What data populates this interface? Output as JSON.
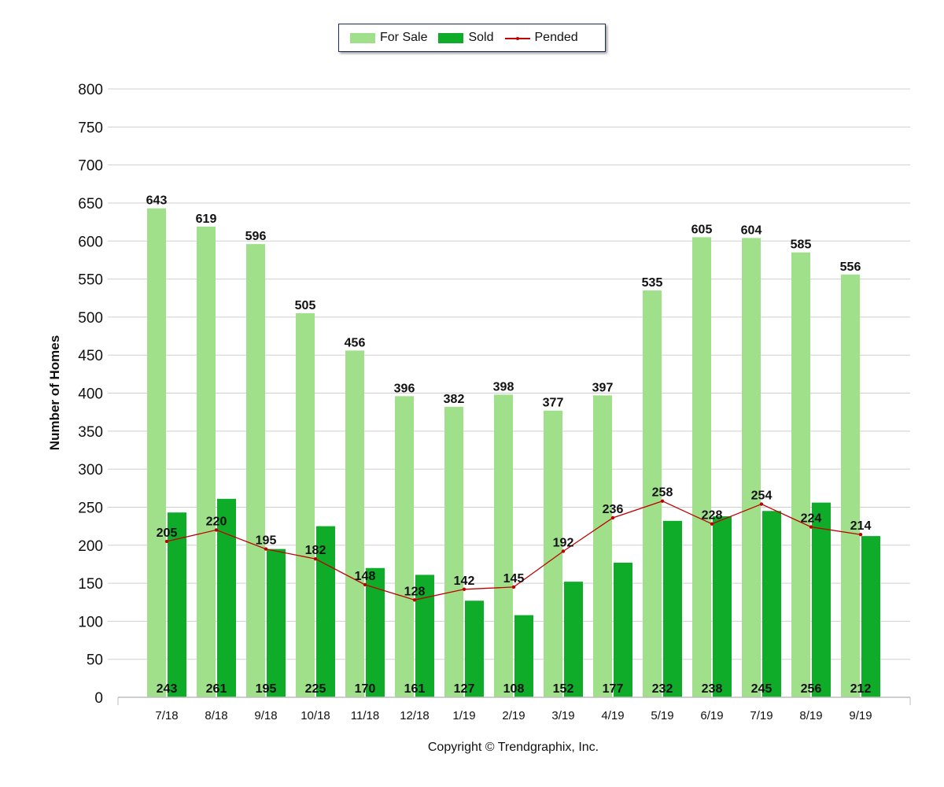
{
  "legend": {
    "for_sale": "For Sale",
    "sold": "Sold",
    "pended": "Pended"
  },
  "copyright": "Copyright © Trendgraphix, Inc.",
  "chart_data": {
    "type": "bar",
    "categories": [
      "7/18",
      "8/18",
      "9/18",
      "10/18",
      "11/18",
      "12/18",
      "1/19",
      "2/19",
      "3/19",
      "4/19",
      "5/19",
      "6/19",
      "7/19",
      "8/19",
      "9/19"
    ],
    "series": [
      {
        "name": "For Sale",
        "type": "bar",
        "color": "#a0e08a",
        "values": [
          643,
          619,
          596,
          505,
          456,
          396,
          382,
          398,
          377,
          397,
          535,
          605,
          604,
          585,
          556
        ]
      },
      {
        "name": "Sold",
        "type": "bar",
        "color": "#0eac28",
        "values": [
          243,
          261,
          195,
          225,
          170,
          161,
          127,
          108,
          152,
          177,
          232,
          238,
          245,
          256,
          212
        ]
      },
      {
        "name": "Pended",
        "type": "line",
        "color": "#c00000",
        "values": [
          205,
          220,
          195,
          182,
          148,
          128,
          142,
          145,
          192,
          236,
          258,
          228,
          254,
          224,
          214
        ]
      }
    ],
    "ylabel": "Number of Homes",
    "xlabel": "",
    "title": "",
    "ylim": [
      0,
      800
    ],
    "yticks": [
      0,
      50,
      100,
      150,
      200,
      250,
      300,
      350,
      400,
      450,
      500,
      550,
      600,
      650,
      700,
      750,
      800
    ],
    "grid": true,
    "legend_position": "top-center"
  }
}
